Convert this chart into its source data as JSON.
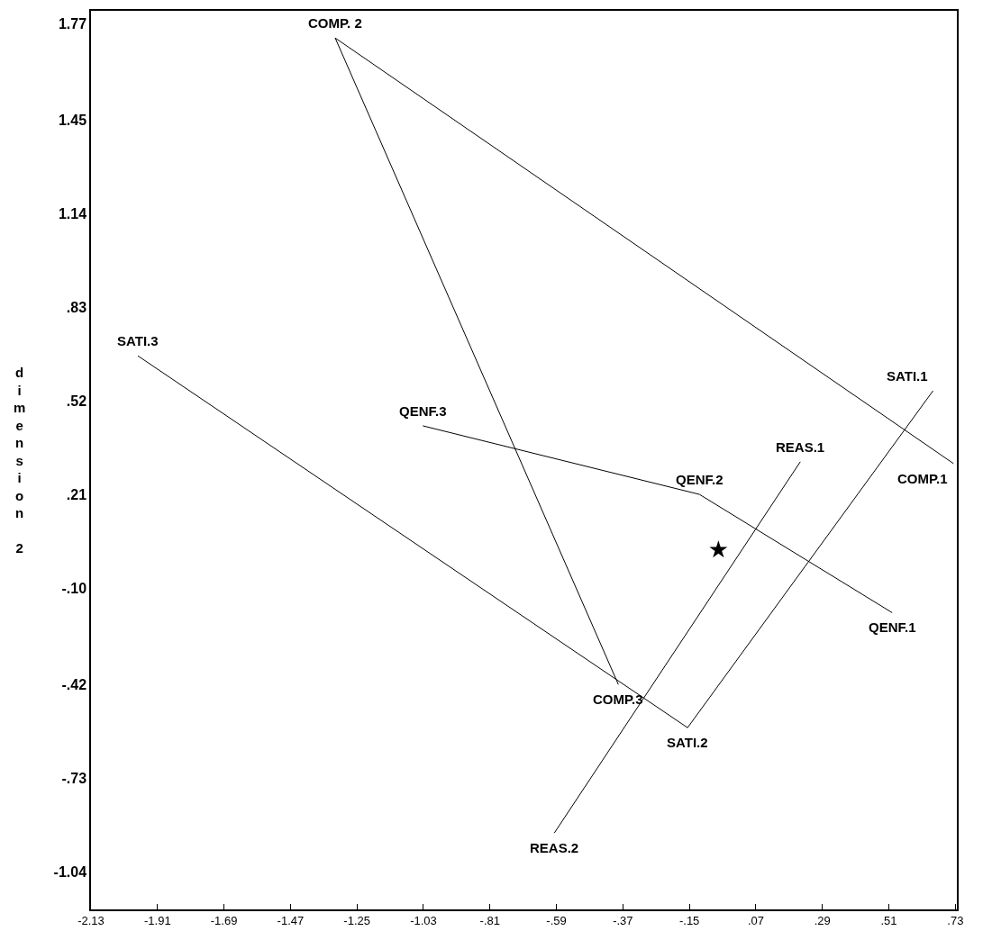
{
  "chart_data": {
    "type": "line",
    "ylabel": "dimension 2",
    "series": [
      {
        "color": "#000000",
        "x": [
          0.724,
          -1.322,
          -0.385
        ],
        "values": [
          0.312,
          1.722,
          -0.42
        ]
      },
      {
        "color": "#000000",
        "x": [
          -1.975,
          -0.156,
          0.656
        ],
        "values": [
          0.669,
          -0.563,
          0.553
        ]
      },
      {
        "color": "#000000",
        "x": [
          -1.032,
          -0.117,
          0.521
        ],
        "values": [
          0.437,
          0.21,
          -0.182
        ]
      },
      {
        "color": "#000000",
        "x": [
          0.217,
          -0.597
        ],
        "values": [
          0.318,
          -0.912
        ]
      },
      {
        "color": "#000000",
        "type": "scatter",
        "marker": "star",
        "x": [
          -0.054
        ],
        "values": [
          0.026
        ]
      }
    ],
    "annotations": [
      {
        "text": "COMP. 2",
        "x": -1.322,
        "y": 1.722
      },
      {
        "text": "SATI.3",
        "x": -1.975,
        "y": 0.669
      },
      {
        "text": "QENF.3",
        "x": -1.032,
        "y": 0.437
      },
      {
        "text": "REAS.1",
        "x": 0.217,
        "y": 0.318
      },
      {
        "text": "SATI.1",
        "x": 0.656,
        "y": 0.553
      },
      {
        "text": "COMP.1",
        "x": 0.724,
        "y": 0.312
      },
      {
        "text": "QENF.2",
        "x": -0.117,
        "y": 0.21
      },
      {
        "text": "QENF.1",
        "x": 0.521,
        "y": -0.182
      },
      {
        "text": "COMP.3",
        "x": -0.385,
        "y": -0.42
      },
      {
        "text": "SATI.2",
        "x": -0.156,
        "y": -0.563
      },
      {
        "text": "REAS.2",
        "x": -0.597,
        "y": -0.912
      }
    ],
    "xlim": [
      -2.13,
      0.735
    ],
    "ylim": [
      -1.165,
      1.812
    ],
    "xticks": [
      -2.13,
      -1.91,
      -1.69,
      -1.47,
      -1.25,
      -1.03,
      {
        "value": -0.81,
        "label": "-.81"
      },
      {
        "value": -0.59,
        "label": "-.59"
      },
      {
        "value": -0.37,
        "label": "-.37"
      },
      {
        "value": -0.15,
        "label": "-.15"
      },
      {
        "value": 0.07,
        "label": ".07"
      },
      {
        "value": 0.29,
        "label": ".29"
      },
      {
        "value": 0.51,
        "label": ".51"
      },
      {
        "value": 0.73,
        "label": ".73"
      }
    ],
    "yticks": [
      1.77,
      1.45,
      1.14,
      {
        "value": 0.83,
        "label": ".83"
      },
      {
        "value": 0.52,
        "label": ".52"
      },
      {
        "value": 0.21,
        "label": ".21"
      },
      {
        "value": -0.1,
        "label": "-.10"
      },
      {
        "value": -0.42,
        "label": "-.42"
      },
      {
        "value": -0.73,
        "label": "-.73"
      },
      -1.04
    ],
    "marker": "none",
    "grid": false
  }
}
